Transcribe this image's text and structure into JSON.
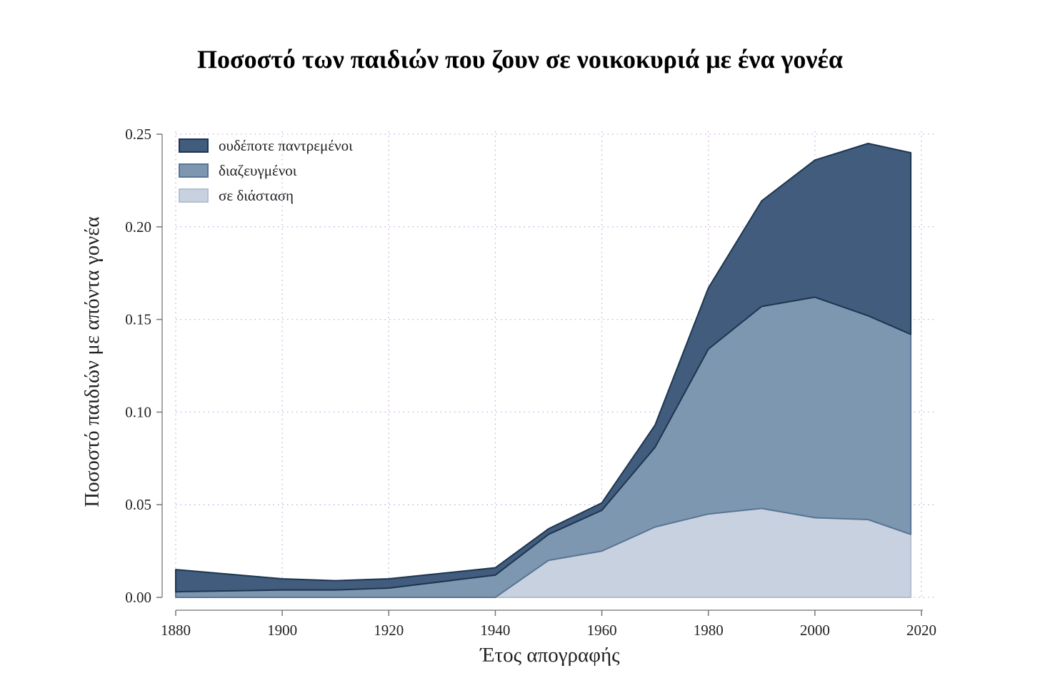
{
  "chart_data": {
    "type": "area",
    "stacked": true,
    "title": "Ποσοστό των παιδιών που ζουν σε νοικοκυριά με ένα γονέα",
    "xlabel": "Έτος απογραφής",
    "ylabel": "Ποσοστό παιδιών με απόντα γονέα",
    "xlim": [
      1880,
      2020
    ],
    "ylim": [
      0,
      0.25
    ],
    "x_ticks": [
      "1880",
      "1900",
      "1920",
      "1940",
      "1960",
      "1980",
      "2000",
      "2020"
    ],
    "y_ticks": [
      "0.00",
      "0.05",
      "0.10",
      "0.15",
      "0.20",
      "0.25"
    ],
    "x_tick_values": [
      1880,
      1900,
      1920,
      1940,
      1960,
      1980,
      2000,
      2020
    ],
    "y_tick_values": [
      0,
      0.05,
      0.1,
      0.15,
      0.2,
      0.25
    ],
    "grid": true,
    "legend_position": "top-left",
    "x": [
      1880,
      1900,
      1910,
      1920,
      1940,
      1950,
      1960,
      1970,
      1980,
      1990,
      2000,
      2010,
      2018
    ],
    "series": [
      {
        "name": "σε διάσταση",
        "color": "#c8d1df",
        "edge": "#b3bfd0",
        "values": [
          0.0,
          0.0,
          0.0,
          0.0,
          0.0,
          0.02,
          0.025,
          0.038,
          0.045,
          0.048,
          0.043,
          0.042,
          0.034
        ]
      },
      {
        "name": "διαζευγμένοι",
        "color": "#7e97b1",
        "edge": "#587594",
        "values": [
          0.003,
          0.004,
          0.004,
          0.005,
          0.012,
          0.014,
          0.022,
          0.043,
          0.089,
          0.109,
          0.119,
          0.11,
          0.108
        ]
      },
      {
        "name": "ουδέποτε παντρεμένοι",
        "color": "#415c7c",
        "edge": "#1e3550",
        "values": [
          0.012,
          0.006,
          0.005,
          0.005,
          0.004,
          0.003,
          0.004,
          0.012,
          0.033,
          0.057,
          0.074,
          0.093,
          0.098
        ]
      }
    ]
  }
}
